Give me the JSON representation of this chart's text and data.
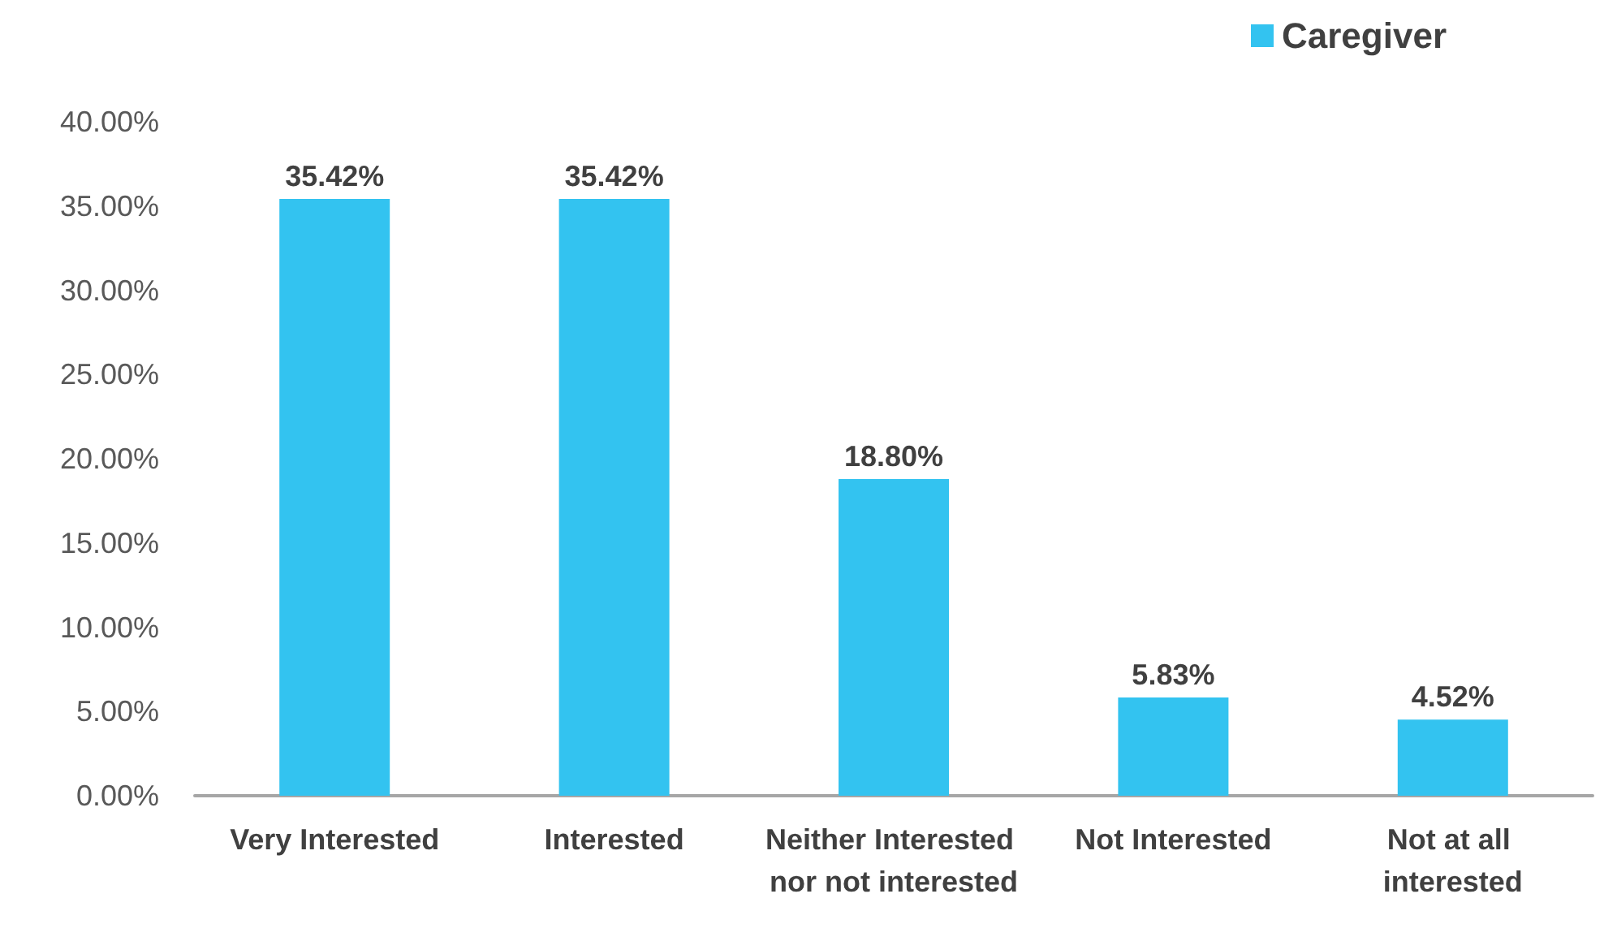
{
  "chart_data": {
    "type": "bar",
    "categories": [
      "Very Interested",
      "Interested",
      "Neither Interested nor not interested",
      "Not Interested",
      "Not at all interested"
    ],
    "series": [
      {
        "name": "Caregiver",
        "color": "#33c3f0",
        "values": [
          35.42,
          35.42,
          18.8,
          5.83,
          4.52
        ],
        "value_labels": [
          "35.42%",
          "35.42%",
          "18.80%",
          "5.83%",
          "4.52%"
        ]
      }
    ],
    "ylim": [
      0,
      40
    ],
    "yticks": [
      {
        "value": 0,
        "label": "0.00%"
      },
      {
        "value": 5,
        "label": "5.00%"
      },
      {
        "value": 10,
        "label": "10.00%"
      },
      {
        "value": 15,
        "label": "15.00%"
      },
      {
        "value": 20,
        "label": "20.00%"
      },
      {
        "value": 25,
        "label": "25.00%"
      },
      {
        "value": 30,
        "label": "30.00%"
      },
      {
        "value": 35,
        "label": "35.00%"
      },
      {
        "value": 40,
        "label": "40.00%"
      }
    ],
    "grid": false,
    "legend": "top right"
  }
}
